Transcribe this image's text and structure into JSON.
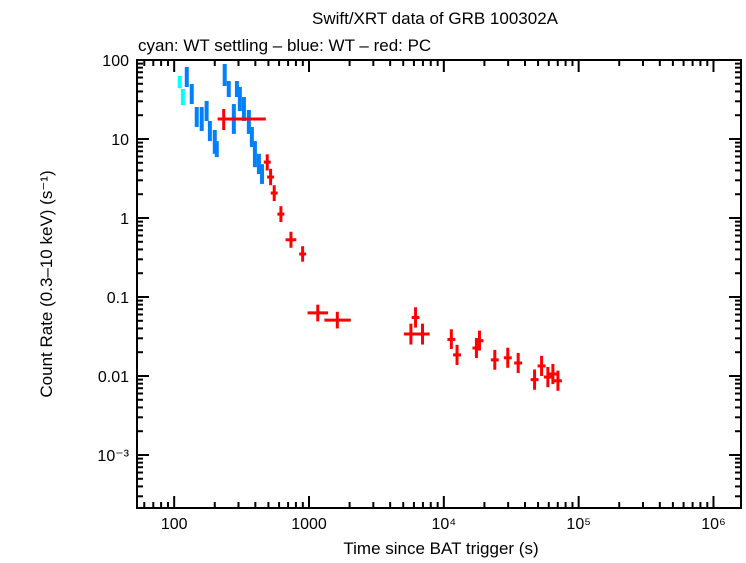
{
  "chart_data": {
    "type": "scatter",
    "title": "Swift/XRT data of GRB 100302A",
    "subtitle": "cyan: WT settling – blue: WT – red: PC",
    "xlabel": "Time since BAT trigger (s)",
    "ylabel": "Count Rate (0.3–10 keV) (s⁻¹)",
    "xscale": "log",
    "yscale": "log",
    "xlim": [
      53,
      1600000
    ],
    "ylim": [
      0.0001,
      100
    ],
    "grid": false,
    "x_ticks": [
      {
        "value": 100,
        "label": "100"
      },
      {
        "value": 1000,
        "label": "1000"
      },
      {
        "value": 10000,
        "label": "10⁴"
      },
      {
        "value": 100000,
        "label": "10⁵"
      },
      {
        "value": 1000000,
        "label": "10⁶"
      }
    ],
    "y_ticks": [
      {
        "value": 100,
        "label": "100"
      },
      {
        "value": 10,
        "label": "10"
      },
      {
        "value": 1,
        "label": "1"
      },
      {
        "value": 0.1,
        "label": "0.1"
      },
      {
        "value": 0.01,
        "label": "0.01"
      },
      {
        "value": 0.001,
        "label": "10⁻³"
      }
    ],
    "series": [
      {
        "name": "WT settling",
        "color": "#00ffff",
        "points": [
          {
            "x": 110,
            "xlo": 108,
            "xhi": 112,
            "y": 52.7,
            "ylo": 44,
            "yhi": 63
          },
          {
            "x": 116,
            "xlo": 114,
            "xhi": 118,
            "y": 34,
            "ylo": 26.9,
            "yhi": 43
          }
        ]
      },
      {
        "name": "WT",
        "color": "#0080ff",
        "points": [
          {
            "x": 124,
            "xlo": 122,
            "xhi": 126,
            "y": 61,
            "ylo": 45.5,
            "yhi": 81.5
          },
          {
            "x": 135,
            "xlo": 133,
            "xhi": 137,
            "y": 37,
            "ylo": 27.7,
            "yhi": 49.7
          },
          {
            "x": 147,
            "xlo": 145,
            "xhi": 149,
            "y": 19,
            "ylo": 14.2,
            "yhi": 25.4
          },
          {
            "x": 160,
            "xlo": 158,
            "xhi": 162,
            "y": 17.9,
            "ylo": 12.6,
            "yhi": 25.4
          },
          {
            "x": 174,
            "xlo": 172,
            "xhi": 176,
            "y": 22.6,
            "ylo": 16.9,
            "yhi": 30.3
          },
          {
            "x": 184,
            "xlo": 182,
            "xhi": 186,
            "y": 12.6,
            "ylo": 9.4,
            "yhi": 16.9
          },
          {
            "x": 200,
            "xlo": 198,
            "xhi": 202,
            "y": 9.2,
            "ylo": 6.5,
            "yhi": 13
          },
          {
            "x": 207,
            "xlo": 205,
            "xhi": 209,
            "y": 7.5,
            "ylo": 5.9,
            "yhi": 9.4
          },
          {
            "x": 237,
            "xlo": 234,
            "xhi": 240,
            "y": 64.6,
            "ylo": 46.9,
            "yhi": 89
          },
          {
            "x": 254,
            "xlo": 251,
            "xhi": 257,
            "y": 43,
            "ylo": 34,
            "yhi": 54.2
          },
          {
            "x": 277,
            "xlo": 274,
            "xhi": 280,
            "y": 17.9,
            "ylo": 11.6,
            "yhi": 27.7
          },
          {
            "x": 292,
            "xlo": 289,
            "xhi": 295,
            "y": 43,
            "ylo": 34,
            "yhi": 54.2
          },
          {
            "x": 307,
            "xlo": 304,
            "xhi": 310,
            "y": 32,
            "ylo": 22.6,
            "yhi": 45.5
          },
          {
            "x": 329,
            "xlo": 326,
            "xhi": 332,
            "y": 24,
            "ylo": 16.9,
            "yhi": 34
          },
          {
            "x": 358,
            "xlo": 355,
            "xhi": 361,
            "y": 16.4,
            "ylo": 11.6,
            "yhi": 23.3
          },
          {
            "x": 377,
            "xlo": 374,
            "xhi": 380,
            "y": 10.6,
            "ylo": 7.9,
            "yhi": 14.2
          },
          {
            "x": 397,
            "xlo": 394,
            "xhi": 400,
            "y": 6.5,
            "ylo": 4.4,
            "yhi": 9.4
          },
          {
            "x": 425,
            "xlo": 421,
            "xhi": 429,
            "y": 4.8,
            "ylo": 3.6,
            "yhi": 6.5
          },
          {
            "x": 448,
            "xlo": 444,
            "xhi": 452,
            "y": 3.6,
            "ylo": 2.7,
            "yhi": 4.8
          }
        ]
      },
      {
        "name": "PC",
        "color": "#ff0000",
        "points": [
          {
            "x": 233,
            "xlo": 210,
            "xhi": 478,
            "y": 17.9,
            "ylo": 13,
            "yhi": 24
          },
          {
            "x": 490,
            "xlo": 462,
            "xhi": 520,
            "y": 5.1,
            "ylo": 4.0,
            "yhi": 6.4
          },
          {
            "x": 519,
            "xlo": 489,
            "xhi": 551,
            "y": 3.3,
            "ylo": 2.6,
            "yhi": 4.2
          },
          {
            "x": 552,
            "xlo": 520,
            "xhi": 586,
            "y": 2.07,
            "ylo": 1.64,
            "yhi": 2.6
          },
          {
            "x": 619,
            "xlo": 583,
            "xhi": 657,
            "y": 1.12,
            "ylo": 0.89,
            "yhi": 1.41
          },
          {
            "x": 735,
            "xlo": 670,
            "xhi": 805,
            "y": 0.53,
            "ylo": 0.42,
            "yhi": 0.67
          },
          {
            "x": 897,
            "xlo": 845,
            "xhi": 952,
            "y": 0.35,
            "ylo": 0.28,
            "yhi": 0.44
          },
          {
            "x": 1162,
            "xlo": 975,
            "xhi": 1385,
            "y": 0.063,
            "ylo": 0.049,
            "yhi": 0.08
          },
          {
            "x": 1622,
            "xlo": 1300,
            "xhi": 2040,
            "y": 0.051,
            "ylo": 0.04,
            "yhi": 0.065
          },
          {
            "x": 5700,
            "xlo": 5050,
            "xhi": 6440,
            "y": 0.034,
            "ylo": 0.025,
            "yhi": 0.046
          },
          {
            "x": 6170,
            "xlo": 5770,
            "xhi": 6600,
            "y": 0.055,
            "ylo": 0.041,
            "yhi": 0.074
          },
          {
            "x": 6950,
            "xlo": 6150,
            "xhi": 7850,
            "y": 0.034,
            "ylo": 0.025,
            "yhi": 0.046
          },
          {
            "x": 11370,
            "xlo": 10630,
            "xhi": 12170,
            "y": 0.029,
            "ylo": 0.022,
            "yhi": 0.039
          },
          {
            "x": 12530,
            "xlo": 11710,
            "xhi": 13410,
            "y": 0.0185,
            "ylo": 0.0138,
            "yhi": 0.0248
          },
          {
            "x": 17450,
            "xlo": 16310,
            "xhi": 18670,
            "y": 0.0226,
            "ylo": 0.0169,
            "yhi": 0.0303
          },
          {
            "x": 18380,
            "xlo": 17180,
            "xhi": 19670,
            "y": 0.028,
            "ylo": 0.021,
            "yhi": 0.0375
          },
          {
            "x": 23880,
            "xlo": 22320,
            "xhi": 25550,
            "y": 0.016,
            "ylo": 0.012,
            "yhi": 0.0214
          },
          {
            "x": 29800,
            "xlo": 27850,
            "xhi": 31890,
            "y": 0.017,
            "ylo": 0.0127,
            "yhi": 0.0228
          },
          {
            "x": 35600,
            "xlo": 33270,
            "xhi": 38090,
            "y": 0.0146,
            "ylo": 0.0109,
            "yhi": 0.0196
          },
          {
            "x": 47100,
            "xlo": 44020,
            "xhi": 50400,
            "y": 0.009,
            "ylo": 0.0067,
            "yhi": 0.0121
          },
          {
            "x": 53100,
            "xlo": 49630,
            "xhi": 56820,
            "y": 0.0134,
            "ylo": 0.01,
            "yhi": 0.018
          },
          {
            "x": 59100,
            "xlo": 55230,
            "xhi": 63240,
            "y": 0.0097,
            "ylo": 0.0072,
            "yhi": 0.013
          },
          {
            "x": 64400,
            "xlo": 60190,
            "xhi": 68910,
            "y": 0.0106,
            "ylo": 0.0079,
            "yhi": 0.0142
          },
          {
            "x": 70200,
            "xlo": 65610,
            "xhi": 75110,
            "y": 0.0087,
            "ylo": 0.0065,
            "yhi": 0.0117
          }
        ]
      }
    ]
  }
}
